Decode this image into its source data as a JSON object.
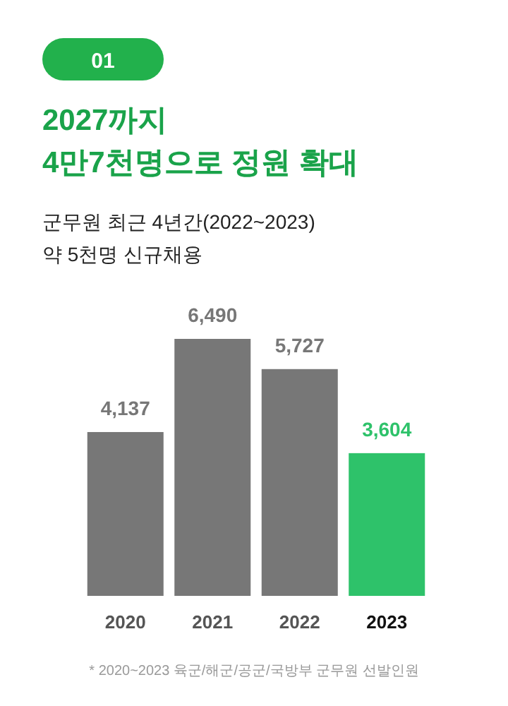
{
  "chart_data": {
    "type": "bar",
    "title": "2027까지\n4만7천명으로 정원 확대",
    "subtitle": "군무원 최근 4년간(2022~2023)\n약 5천명 신규채용",
    "annotations": [
      "01",
      "* 2020~2023 육군/해군/공군/국방부 군무원 선발인원"
    ],
    "categories": [
      "2020",
      "2021",
      "2022",
      "2023"
    ],
    "values": [
      4137,
      6490,
      5727,
      3604
    ],
    "colors": [
      "#777777",
      "#777777",
      "#777777",
      "#2ec26a"
    ],
    "value_labels": [
      "4,137",
      "6,490",
      "5,727",
      "3,604"
    ]
  }
}
